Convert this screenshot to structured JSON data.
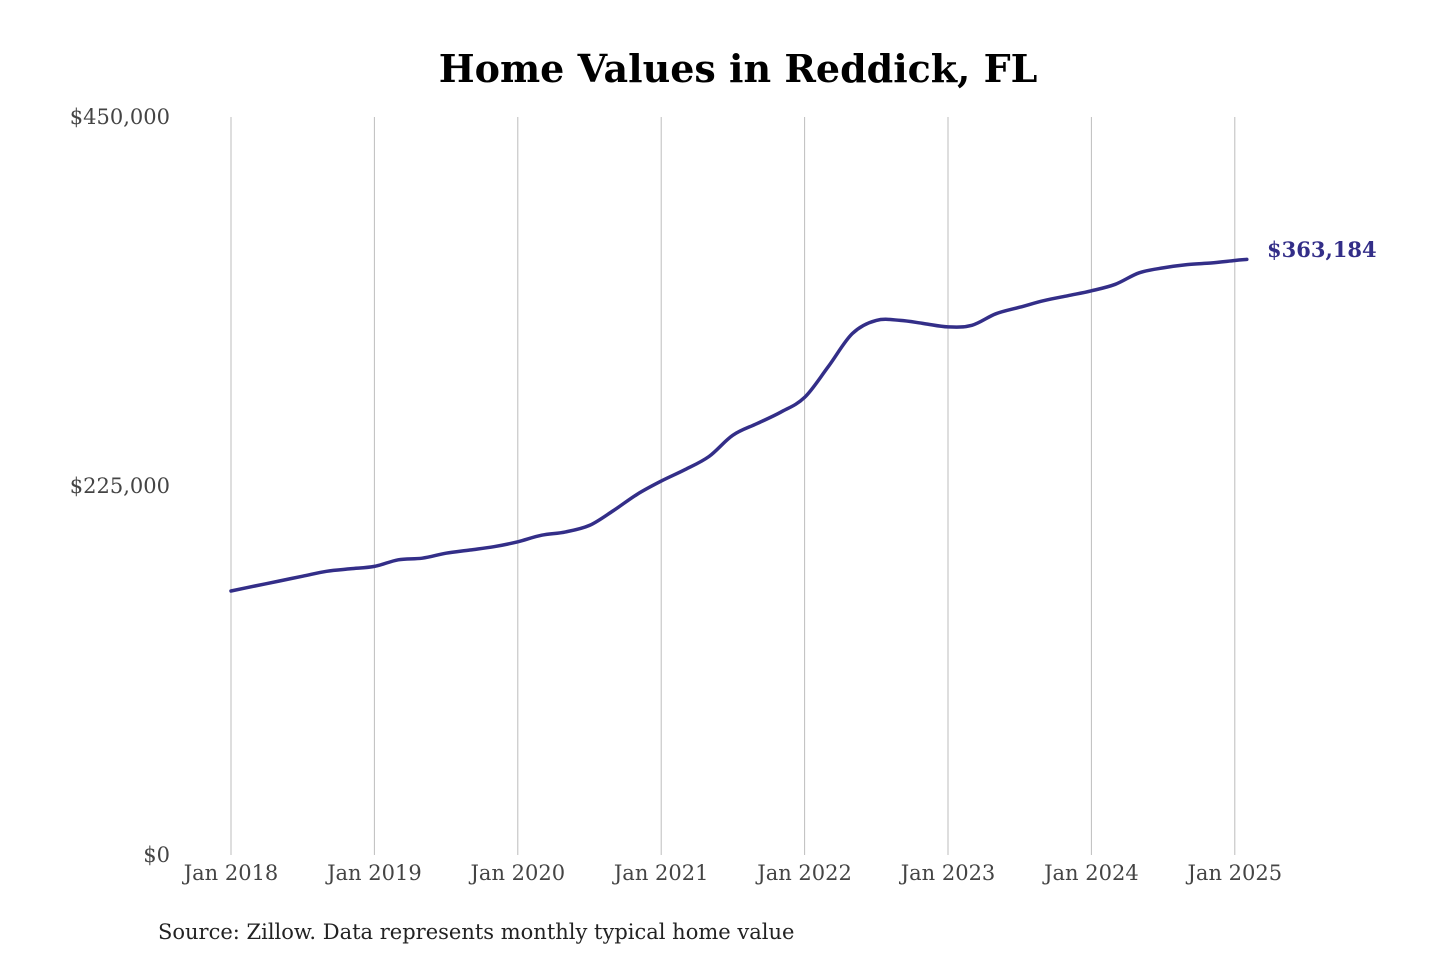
{
  "colors": {
    "line": "#332e88",
    "grid": "#bdbdbd",
    "text": "#444444"
  },
  "chart_data": {
    "type": "line",
    "title": "Home Values in Reddick, FL",
    "xlabel": "",
    "ylabel": "",
    "x_tick_labels": [
      "Jan 2018",
      "Jan 2019",
      "Jan 2020",
      "Jan 2021",
      "Jan 2022",
      "Jan 2023",
      "Jan 2024",
      "Jan 2025"
    ],
    "y_tick_labels": [
      "$0",
      "$225,000",
      "$450,000"
    ],
    "ylim": [
      0,
      450000
    ],
    "xlim": [
      "2018-01",
      "2025-02"
    ],
    "grid": "vertical",
    "end_label": "$363,184",
    "source": "Source: Zillow. Data represents monthly typical home value",
    "series": [
      {
        "values": [
          [
            "2018-01",
            161000
          ],
          [
            "2018-03",
            164000
          ],
          [
            "2018-05",
            167000
          ],
          [
            "2018-07",
            170000
          ],
          [
            "2018-09",
            173000
          ],
          [
            "2018-11",
            174500
          ],
          [
            "2019-01",
            176000
          ],
          [
            "2019-03",
            180000
          ],
          [
            "2019-05",
            181000
          ],
          [
            "2019-07",
            184000
          ],
          [
            "2019-09",
            186000
          ],
          [
            "2019-11",
            188000
          ],
          [
            "2020-01",
            191000
          ],
          [
            "2020-03",
            195000
          ],
          [
            "2020-05",
            197000
          ],
          [
            "2020-07",
            201000
          ],
          [
            "2020-09",
            210000
          ],
          [
            "2020-11",
            220000
          ],
          [
            "2021-01",
            228000
          ],
          [
            "2021-03",
            235000
          ],
          [
            "2021-05",
            243000
          ],
          [
            "2021-07",
            256000
          ],
          [
            "2021-09",
            263000
          ],
          [
            "2021-11",
            270000
          ],
          [
            "2022-01",
            279000
          ],
          [
            "2022-03",
            298000
          ],
          [
            "2022-05",
            318000
          ],
          [
            "2022-07",
            326000
          ],
          [
            "2022-09",
            326000
          ],
          [
            "2022-11",
            324000
          ],
          [
            "2023-01",
            322000
          ],
          [
            "2023-03",
            323000
          ],
          [
            "2023-05",
            330000
          ],
          [
            "2023-07",
            334000
          ],
          [
            "2023-09",
            338000
          ],
          [
            "2023-11",
            341000
          ],
          [
            "2024-01",
            344000
          ],
          [
            "2024-03",
            348000
          ],
          [
            "2024-05",
            355000
          ],
          [
            "2024-07",
            358000
          ],
          [
            "2024-09",
            360000
          ],
          [
            "2024-11",
            361000
          ],
          [
            "2025-01",
            362500
          ],
          [
            "2025-02",
            363184
          ]
        ]
      }
    ]
  }
}
